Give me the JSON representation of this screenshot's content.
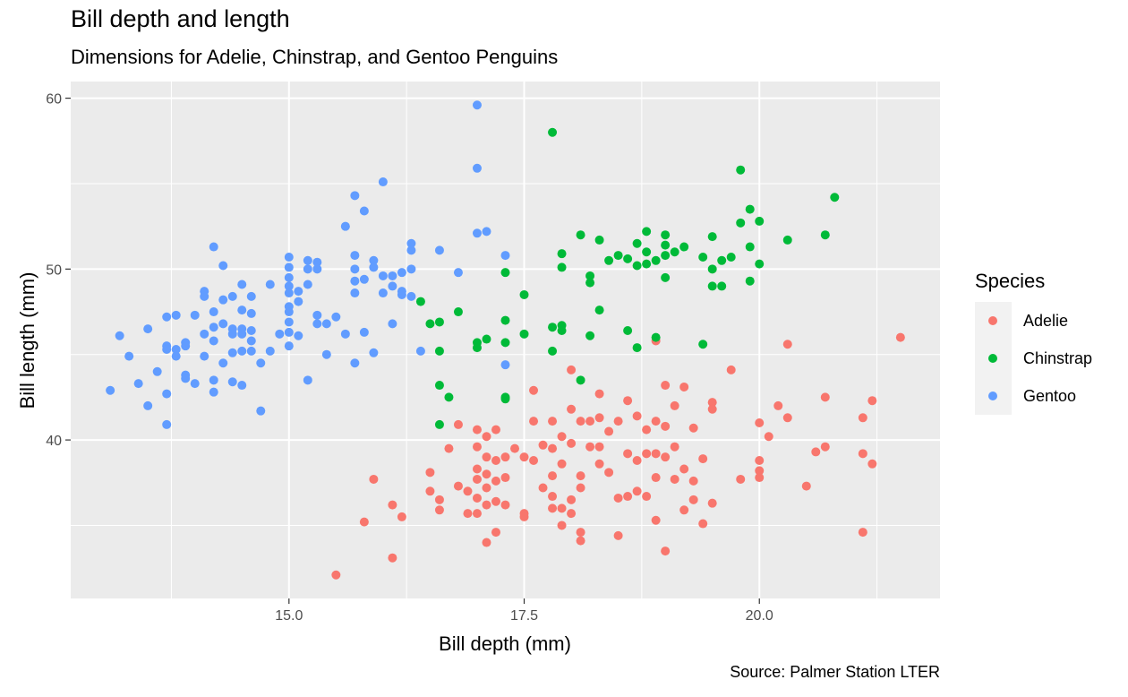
{
  "chart_data": {
    "type": "scatter",
    "title": "Bill depth and length",
    "subtitle": "Dimensions for Adelie, Chinstrap, and Gentoo Penguins",
    "caption": "Source: Palmer Station LTER",
    "xlabel": "Bill depth (mm)",
    "ylabel": "Bill length (mm)",
    "xlim": [
      13.1,
      21.5
    ],
    "ylim": [
      32.1,
      59.6
    ],
    "x_ticks": [
      15.0,
      17.5,
      20.0
    ],
    "x_tick_labels": [
      "15.0",
      "17.5",
      "20.0"
    ],
    "y_ticks": [
      40,
      50,
      60
    ],
    "y_tick_labels": [
      "40",
      "50",
      "60"
    ],
    "grid": true,
    "legend": {
      "title": "Species",
      "position": "right"
    },
    "series": [
      {
        "name": "Adelie",
        "color": "#F8766D",
        "points": [
          [
            15.5,
            32.1
          ],
          [
            16.1,
            33.1
          ],
          [
            16.2,
            35.5
          ],
          [
            15.9,
            37.7
          ],
          [
            16.1,
            36.2
          ],
          [
            15.8,
            35.2
          ],
          [
            16.5,
            38.1
          ],
          [
            16.5,
            37.0
          ],
          [
            16.6,
            36.5
          ],
          [
            16.6,
            35.9
          ],
          [
            16.7,
            39.5
          ],
          [
            16.8,
            40.9
          ],
          [
            16.8,
            37.3
          ],
          [
            16.9,
            37.0
          ],
          [
            16.9,
            35.7
          ],
          [
            17.0,
            40.6
          ],
          [
            17.0,
            39.6
          ],
          [
            17.0,
            38.3
          ],
          [
            17.0,
            37.7
          ],
          [
            17.0,
            36.6
          ],
          [
            17.0,
            35.7
          ],
          [
            17.1,
            40.2
          ],
          [
            17.1,
            39.0
          ],
          [
            17.1,
            38.0
          ],
          [
            17.1,
            37.2
          ],
          [
            17.1,
            36.2
          ],
          [
            17.1,
            34.0
          ],
          [
            17.2,
            40.6
          ],
          [
            17.2,
            38.8
          ],
          [
            17.2,
            37.6
          ],
          [
            17.2,
            36.4
          ],
          [
            17.2,
            34.6
          ],
          [
            17.3,
            39.0
          ],
          [
            17.3,
            37.8
          ],
          [
            17.3,
            36.2
          ],
          [
            17.4,
            39.5
          ],
          [
            17.5,
            39.0
          ],
          [
            17.5,
            35.7
          ],
          [
            17.5,
            35.5
          ],
          [
            17.6,
            42.9
          ],
          [
            17.6,
            41.1
          ],
          [
            17.6,
            38.8
          ],
          [
            17.7,
            39.7
          ],
          [
            17.7,
            37.2
          ],
          [
            17.8,
            41.1
          ],
          [
            17.8,
            39.5
          ],
          [
            17.8,
            37.9
          ],
          [
            17.8,
            36.7
          ],
          [
            17.8,
            36.0
          ],
          [
            17.9,
            40.2
          ],
          [
            17.9,
            38.6
          ],
          [
            17.9,
            36.0
          ],
          [
            17.9,
            35.0
          ],
          [
            18.0,
            41.8
          ],
          [
            18.0,
            39.8
          ],
          [
            18.0,
            36.5
          ],
          [
            18.0,
            35.7
          ],
          [
            18.1,
            41.1
          ],
          [
            18.1,
            37.9
          ],
          [
            18.1,
            37.2
          ],
          [
            18.1,
            34.6
          ],
          [
            18.1,
            34.1
          ],
          [
            18.2,
            41.1
          ],
          [
            18.2,
            39.6
          ],
          [
            18.3,
            42.7
          ],
          [
            18.3,
            41.3
          ],
          [
            18.3,
            39.6
          ],
          [
            18.3,
            38.6
          ],
          [
            18.4,
            40.5
          ],
          [
            18.4,
            38.1
          ],
          [
            18.5,
            41.1
          ],
          [
            18.5,
            36.6
          ],
          [
            18.5,
            34.4
          ],
          [
            18.6,
            42.3
          ],
          [
            18.6,
            39.2
          ],
          [
            18.6,
            36.7
          ],
          [
            18.7,
            41.4
          ],
          [
            18.7,
            38.8
          ],
          [
            18.7,
            37.0
          ],
          [
            18.8,
            40.6
          ],
          [
            18.8,
            39.2
          ],
          [
            18.8,
            36.7
          ],
          [
            18.9,
            41.1
          ],
          [
            18.9,
            39.2
          ],
          [
            18.9,
            37.8
          ],
          [
            18.9,
            35.3
          ],
          [
            18.9,
            45.8
          ],
          [
            19.0,
            43.2
          ],
          [
            19.0,
            40.8
          ],
          [
            19.0,
            39.0
          ],
          [
            19.0,
            33.5
          ],
          [
            19.1,
            42.0
          ],
          [
            19.1,
            39.6
          ],
          [
            19.1,
            37.7
          ],
          [
            19.2,
            43.1
          ],
          [
            19.2,
            38.3
          ],
          [
            19.2,
            35.9
          ],
          [
            19.3,
            40.7
          ],
          [
            19.3,
            37.6
          ],
          [
            19.3,
            36.5
          ],
          [
            19.4,
            38.9
          ],
          [
            19.4,
            35.1
          ],
          [
            19.5,
            42.2
          ],
          [
            19.5,
            41.8
          ],
          [
            19.5,
            36.3
          ],
          [
            19.7,
            44.1
          ],
          [
            19.8,
            37.7
          ],
          [
            20.0,
            41.0
          ],
          [
            20.0,
            38.8
          ],
          [
            20.0,
            38.2
          ],
          [
            20.0,
            37.8
          ],
          [
            20.1,
            40.2
          ],
          [
            20.2,
            42.0
          ],
          [
            20.3,
            45.6
          ],
          [
            20.3,
            41.3
          ],
          [
            20.5,
            37.3
          ],
          [
            20.6,
            39.3
          ],
          [
            20.7,
            42.5
          ],
          [
            20.7,
            39.6
          ],
          [
            21.1,
            41.3
          ],
          [
            21.1,
            39.2
          ],
          [
            21.1,
            34.6
          ],
          [
            21.2,
            42.3
          ],
          [
            21.2,
            38.6
          ],
          [
            21.5,
            46.0
          ],
          [
            18.0,
            44.1
          ]
        ]
      },
      {
        "name": "Chinstrap",
        "color": "#00BA38",
        "points": [
          [
            16.4,
            48.1
          ],
          [
            16.5,
            46.8
          ],
          [
            16.6,
            46.9
          ],
          [
            16.6,
            45.2
          ],
          [
            16.6,
            43.2
          ],
          [
            16.6,
            40.9
          ],
          [
            16.7,
            42.5
          ],
          [
            16.8,
            47.5
          ],
          [
            17.0,
            45.7
          ],
          [
            17.0,
            45.4
          ],
          [
            17.1,
            45.9
          ],
          [
            17.3,
            49.8
          ],
          [
            17.3,
            47.0
          ],
          [
            17.3,
            45.7
          ],
          [
            17.3,
            42.5
          ],
          [
            17.3,
            42.4
          ],
          [
            17.5,
            48.5
          ],
          [
            17.5,
            46.2
          ],
          [
            17.8,
            58.0
          ],
          [
            17.8,
            46.6
          ],
          [
            17.8,
            45.2
          ],
          [
            17.9,
            50.9
          ],
          [
            17.9,
            50.1
          ],
          [
            17.9,
            46.7
          ],
          [
            17.9,
            46.4
          ],
          [
            18.1,
            52.0
          ],
          [
            18.1,
            43.5
          ],
          [
            18.2,
            49.6
          ],
          [
            18.2,
            49.2
          ],
          [
            18.2,
            46.1
          ],
          [
            18.3,
            51.7
          ],
          [
            18.3,
            47.6
          ],
          [
            18.4,
            50.5
          ],
          [
            18.5,
            50.8
          ],
          [
            18.6,
            50.6
          ],
          [
            18.6,
            46.4
          ],
          [
            18.7,
            51.5
          ],
          [
            18.7,
            50.2
          ],
          [
            18.7,
            45.4
          ],
          [
            18.8,
            52.2
          ],
          [
            18.8,
            51.0
          ],
          [
            18.8,
            50.3
          ],
          [
            18.9,
            50.5
          ],
          [
            18.9,
            46.0
          ],
          [
            19.0,
            52.0
          ],
          [
            19.0,
            51.4
          ],
          [
            19.0,
            50.8
          ],
          [
            19.0,
            49.5
          ],
          [
            19.1,
            51.0
          ],
          [
            19.2,
            51.3
          ],
          [
            19.4,
            50.7
          ],
          [
            19.4,
            45.6
          ],
          [
            19.5,
            51.9
          ],
          [
            19.5,
            50.0
          ],
          [
            19.5,
            49.0
          ],
          [
            19.6,
            50.5
          ],
          [
            19.6,
            49.0
          ],
          [
            19.7,
            50.7
          ],
          [
            19.8,
            55.8
          ],
          [
            19.8,
            52.7
          ],
          [
            19.9,
            53.5
          ],
          [
            19.9,
            51.3
          ],
          [
            19.9,
            49.3
          ],
          [
            20.0,
            52.8
          ],
          [
            20.0,
            50.3
          ],
          [
            20.3,
            51.7
          ],
          [
            20.7,
            52.0
          ],
          [
            20.8,
            54.2
          ]
        ]
      },
      {
        "name": "Gentoo",
        "color": "#619CFF",
        "points": [
          [
            13.1,
            42.9
          ],
          [
            13.2,
            46.1
          ],
          [
            13.3,
            44.9
          ],
          [
            13.4,
            43.3
          ],
          [
            13.5,
            46.5
          ],
          [
            13.5,
            42.0
          ],
          [
            13.6,
            44.0
          ],
          [
            13.7,
            47.2
          ],
          [
            13.7,
            45.5
          ],
          [
            13.7,
            45.3
          ],
          [
            13.7,
            42.7
          ],
          [
            13.7,
            40.9
          ],
          [
            13.8,
            47.3
          ],
          [
            13.8,
            45.3
          ],
          [
            13.8,
            44.9
          ],
          [
            13.9,
            45.7
          ],
          [
            13.9,
            45.5
          ],
          [
            13.9,
            43.8
          ],
          [
            13.9,
            43.6
          ],
          [
            14.0,
            47.3
          ],
          [
            14.0,
            43.3
          ],
          [
            14.1,
            48.7
          ],
          [
            14.1,
            48.4
          ],
          [
            14.1,
            46.2
          ],
          [
            14.1,
            44.9
          ],
          [
            14.2,
            51.3
          ],
          [
            14.2,
            47.5
          ],
          [
            14.2,
            46.6
          ],
          [
            14.2,
            45.8
          ],
          [
            14.2,
            43.5
          ],
          [
            14.2,
            42.8
          ],
          [
            14.3,
            50.2
          ],
          [
            14.3,
            48.2
          ],
          [
            14.3,
            46.8
          ],
          [
            14.3,
            44.5
          ],
          [
            14.4,
            48.4
          ],
          [
            14.4,
            46.5
          ],
          [
            14.4,
            46.2
          ],
          [
            14.4,
            45.1
          ],
          [
            14.4,
            43.4
          ],
          [
            14.5,
            49.1
          ],
          [
            14.5,
            47.6
          ],
          [
            14.5,
            46.5
          ],
          [
            14.5,
            46.2
          ],
          [
            14.5,
            45.2
          ],
          [
            14.5,
            43.2
          ],
          [
            14.6,
            48.4
          ],
          [
            14.6,
            47.4
          ],
          [
            14.6,
            46.4
          ],
          [
            14.6,
            45.8
          ],
          [
            14.6,
            45.2
          ],
          [
            14.7,
            44.5
          ],
          [
            14.7,
            41.7
          ],
          [
            14.8,
            49.1
          ],
          [
            14.8,
            45.2
          ],
          [
            14.9,
            46.2
          ],
          [
            15.0,
            50.7
          ],
          [
            15.0,
            50.1
          ],
          [
            15.0,
            49.5
          ],
          [
            15.0,
            49.0
          ],
          [
            15.0,
            48.6
          ],
          [
            15.0,
            47.8
          ],
          [
            15.0,
            47.5
          ],
          [
            15.0,
            46.9
          ],
          [
            15.0,
            46.3
          ],
          [
            15.0,
            45.5
          ],
          [
            15.1,
            48.7
          ],
          [
            15.1,
            48.1
          ],
          [
            15.1,
            46.1
          ],
          [
            15.2,
            50.5
          ],
          [
            15.2,
            50.0
          ],
          [
            15.2,
            49.1
          ],
          [
            15.2,
            43.5
          ],
          [
            15.3,
            50.4
          ],
          [
            15.3,
            50.0
          ],
          [
            15.3,
            47.3
          ],
          [
            15.3,
            46.8
          ],
          [
            15.4,
            46.8
          ],
          [
            15.4,
            45.0
          ],
          [
            15.5,
            47.2
          ],
          [
            15.6,
            52.5
          ],
          [
            15.6,
            46.2
          ],
          [
            15.7,
            54.3
          ],
          [
            15.7,
            50.8
          ],
          [
            15.7,
            50.0
          ],
          [
            15.7,
            49.3
          ],
          [
            15.7,
            48.6
          ],
          [
            15.7,
            44.5
          ],
          [
            15.8,
            53.4
          ],
          [
            15.8,
            49.4
          ],
          [
            15.8,
            46.3
          ],
          [
            15.9,
            50.5
          ],
          [
            15.9,
            50.1
          ],
          [
            15.9,
            45.1
          ],
          [
            16.0,
            55.1
          ],
          [
            16.0,
            49.6
          ],
          [
            16.0,
            48.6
          ],
          [
            16.1,
            49.6
          ],
          [
            16.1,
            49.0
          ],
          [
            16.1,
            46.8
          ],
          [
            16.2,
            49.8
          ],
          [
            16.2,
            48.7
          ],
          [
            16.2,
            48.5
          ],
          [
            16.3,
            51.5
          ],
          [
            16.3,
            51.1
          ],
          [
            16.3,
            50.0
          ],
          [
            16.3,
            48.4
          ],
          [
            16.4,
            45.2
          ],
          [
            16.6,
            51.1
          ],
          [
            16.8,
            49.8
          ],
          [
            17.0,
            59.6
          ],
          [
            17.0,
            55.9
          ],
          [
            17.0,
            52.1
          ],
          [
            17.1,
            52.2
          ],
          [
            17.3,
            50.8
          ],
          [
            17.3,
            44.4
          ]
        ]
      }
    ]
  }
}
